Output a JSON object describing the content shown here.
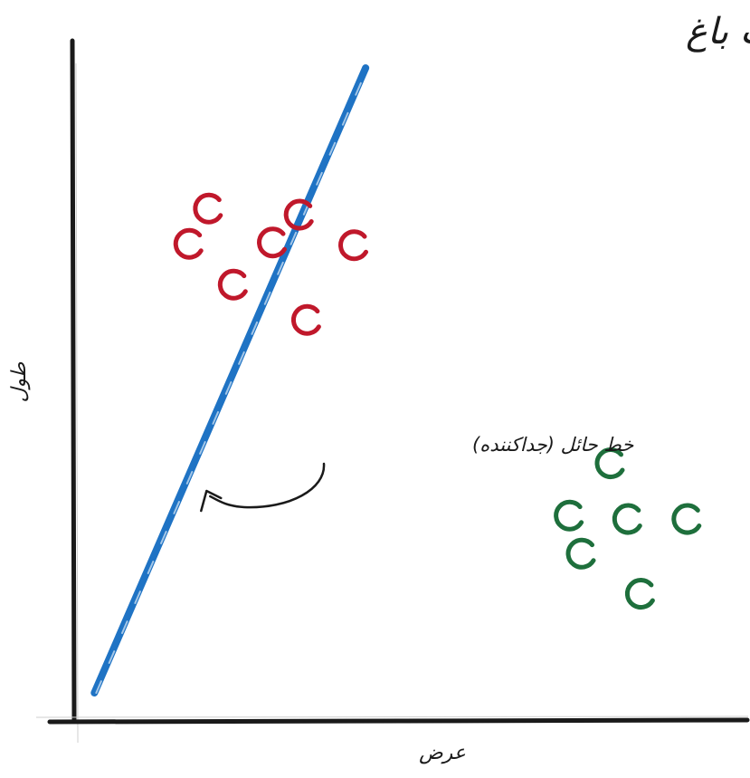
{
  "chart_data": {
    "type": "scatter",
    "title": "طول و عرض حشرات باغ",
    "xlabel": "عرض",
    "ylabel": "طول",
    "xlim": [
      0,
      100
    ],
    "ylim": [
      0,
      100
    ],
    "grid": false,
    "tick_labels": false,
    "series": [
      {
        "color": "#c0182b",
        "marker": "open-circle",
        "points": [
          {
            "x": 20.0,
            "y": 75.3
          },
          {
            "x": 33.5,
            "y": 74.4
          },
          {
            "x": 17.1,
            "y": 70.1
          },
          {
            "x": 29.5,
            "y": 70.3
          },
          {
            "x": 41.6,
            "y": 69.9
          },
          {
            "x": 23.7,
            "y": 64.1
          },
          {
            "x": 34.6,
            "y": 58.9
          }
        ]
      },
      {
        "color": "#1e6f3c",
        "marker": "open-circle",
        "points": [
          {
            "x": 79.7,
            "y": 37.8
          },
          {
            "x": 73.6,
            "y": 30.1
          },
          {
            "x": 82.3,
            "y": 29.6
          },
          {
            "x": 91.1,
            "y": 29.6
          },
          {
            "x": 75.4,
            "y": 24.5
          },
          {
            "x": 84.2,
            "y": 18.6
          }
        ]
      }
    ],
    "lines": [
      {
        "color": "#1f73c4",
        "points": [
          {
            "x": 3.0,
            "y": 4.0
          },
          {
            "x": 43.3,
            "y": 96.0
          }
        ]
      }
    ],
    "annotations": [
      {
        "text": "خط حائل (جداکننده)",
        "arrow_to": {
          "x": 19.4,
          "y": 34.0
        }
      }
    ]
  }
}
